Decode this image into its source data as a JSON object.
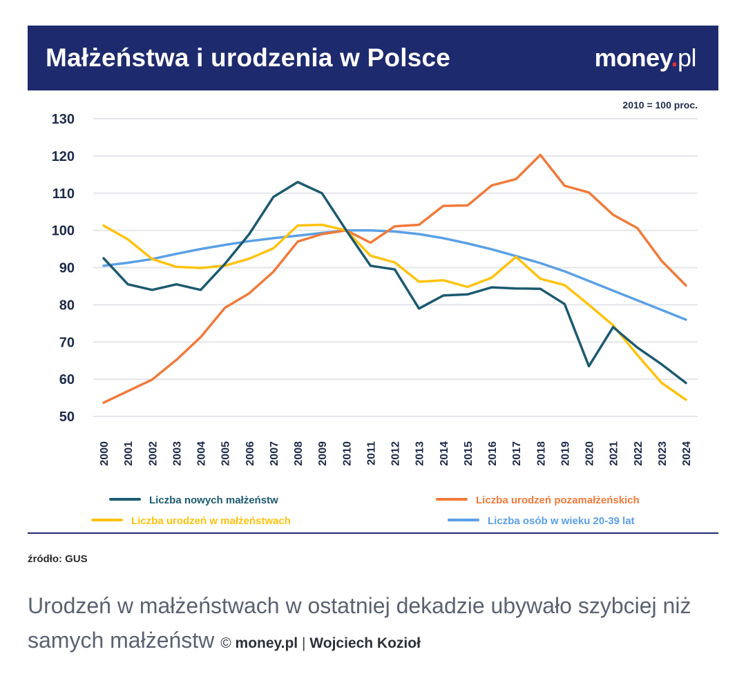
{
  "header": {
    "title": "Małżeństwa i urodzenia w Polsce",
    "logo_text": "money",
    "logo_dot": ".",
    "logo_suffix": "pl"
  },
  "note": "2010 = 100 proc.",
  "source": "źródło: GUS",
  "caption": {
    "text": "Urodzeń w małżeństwach w ostatniej dekadzie ubywało szybciej niż samych małżeństw",
    "copyright": "©",
    "site": "money.pl",
    "separator": "|",
    "author": "Wojciech Kozioł"
  },
  "colors": {
    "header_bg": "#1e2a6e",
    "grid": "#e3e5ea",
    "axis_text": "#1e2a4a"
  },
  "chart_data": {
    "type": "line",
    "title": "Małżeństwa i urodzenia w Polsce",
    "ylabel": "2010 = 100 proc.",
    "xlabel": "",
    "ylim": [
      50,
      130
    ],
    "yticks": [
      "130",
      "120",
      "110",
      "100",
      "90",
      "80",
      "70",
      "60",
      "50"
    ],
    "x": [
      "2000",
      "2001",
      "2002",
      "2003",
      "2004",
      "2005",
      "2006",
      "2007",
      "2008",
      "2009",
      "2010",
      "2011",
      "2012",
      "2013",
      "2014",
      "2015",
      "2016",
      "2017",
      "2018",
      "2019",
      "2020",
      "2021",
      "2022",
      "2023",
      "2024"
    ],
    "legend_position": "bottom",
    "series": [
      {
        "name": "Liczba nowych małżeństw",
        "color": "#1b5a70",
        "values": [
          92.5,
          85.5,
          84,
          85.5,
          84,
          91,
          99,
          109,
          113,
          110,
          100,
          90.5,
          89.5,
          79,
          82.5,
          82.8,
          84.7,
          84.4,
          84.3,
          80.2,
          63.5,
          74,
          68.5,
          64,
          59
        ]
      },
      {
        "name": "Liczba urodzeń pozamałżeńskich",
        "color": "#f07a3a",
        "values": [
          53.7,
          56.8,
          59.9,
          65.2,
          71.3,
          79.2,
          83.1,
          88.9,
          97,
          99,
          100,
          96.7,
          101.1,
          101.5,
          106.6,
          106.7,
          112.1,
          113.8,
          120.3,
          112,
          110.2,
          104.2,
          100.6,
          91.8,
          85.2
        ]
      },
      {
        "name": "Liczba urodzeń w małżeństwach",
        "color": "#ffc20e",
        "values": [
          101.3,
          97.6,
          92.3,
          90.2,
          89.9,
          90.5,
          92.4,
          95.2,
          101.3,
          101.5,
          100,
          93.2,
          91.4,
          86.2,
          86.6,
          84.8,
          87.3,
          92.9,
          87,
          85.3,
          80,
          74.5,
          66.5,
          59,
          54.5
        ]
      },
      {
        "name": "Liczba osób w wieku 20-39 lat",
        "color": "#5aa0e6",
        "values": [
          90.5,
          91.3,
          92.3,
          93.7,
          95,
          96.1,
          97.1,
          97.9,
          98.6,
          99.3,
          100,
          100,
          99.7,
          99,
          97.9,
          96.5,
          94.9,
          93.1,
          91.2,
          89,
          86.4,
          83.8,
          81.2,
          78.6,
          76
        ]
      }
    ]
  }
}
